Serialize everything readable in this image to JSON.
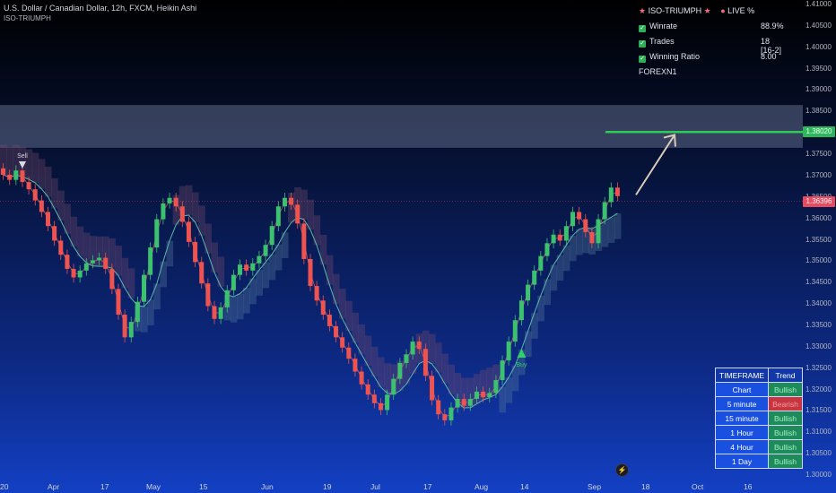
{
  "legend": {
    "title": "U.S. Dollar / Canadian Dollar, 12h, FXCM, Heikin Ashi",
    "indicator": "ISO-TRIUMPH"
  },
  "stats_panel": {
    "header_name": "ISO-TRIUMPH",
    "header_live": "LIVE %",
    "rows": [
      {
        "label": "Winrate",
        "value": "88.9%"
      },
      {
        "label": "Trades",
        "value": "18 [16-2]"
      },
      {
        "label": "Winning Ratio",
        "value": "8.00"
      }
    ],
    "footer": "FOREXN1"
  },
  "timeframe_table": {
    "headers": [
      "TIMEFRAME",
      "Trend"
    ],
    "rows": [
      {
        "timeframe": "Chart",
        "trend": "Bullish"
      },
      {
        "timeframe": "5 minute",
        "trend": "Bearish"
      },
      {
        "timeframe": "15 minute",
        "trend": "Bullish"
      },
      {
        "timeframe": "1 Hour",
        "trend": "Bullish"
      },
      {
        "timeframe": "4 Hour",
        "trend": "Bullish"
      },
      {
        "timeframe": "1 Day",
        "trend": "Bullish"
      }
    ]
  },
  "colors": {
    "bull": "#26a69a",
    "bull_candle": "#3cc26f",
    "bear": "#ef5350",
    "target_line": "#2ecc57",
    "price_label": "#e84a5f",
    "target_label": "#2bb85a"
  },
  "chart_data": {
    "type": "candlestick",
    "symbol": "USDCAD",
    "timeframe": "12h",
    "x_labels": [
      "20",
      "Apr",
      "17",
      "May",
      "15",
      "Jun",
      "19",
      "Jul",
      "17",
      "Aug",
      "14",
      "Sep",
      "18",
      "Oct",
      "16"
    ],
    "ylim": [
      1.3,
      1.41
    ],
    "y_ticks": [
      "1.41000",
      "1.40500",
      "1.40000",
      "1.39500",
      "1.39000",
      "1.38500",
      "1.38000",
      "1.37500",
      "1.37000",
      "1.36500",
      "1.36000",
      "1.35500",
      "1.35000",
      "1.34500",
      "1.34000",
      "1.33500",
      "1.33000",
      "1.32500",
      "1.32000",
      "1.31500",
      "1.31000",
      "1.30500",
      "1.30000"
    ],
    "close_series": [
      1.3702,
      1.369,
      1.3712,
      1.3685,
      1.3668,
      1.3642,
      1.3615,
      1.3582,
      1.3548,
      1.3515,
      1.3482,
      1.3462,
      1.3478,
      1.3495,
      1.3502,
      1.3508,
      1.3482,
      1.3435,
      1.3375,
      1.3322,
      1.3358,
      1.3405,
      1.3468,
      1.3532,
      1.3598,
      1.3635,
      1.3648,
      1.3628,
      1.3592,
      1.3545,
      1.3498,
      1.3448,
      1.3395,
      1.3365,
      1.3392,
      1.3432,
      1.3468,
      1.3492,
      1.3478,
      1.3495,
      1.3512,
      1.3538,
      1.3582,
      1.3628,
      1.3648,
      1.3632,
      1.3588,
      1.3505,
      1.3442,
      1.3408,
      1.3375,
      1.3348,
      1.3322,
      1.3298,
      1.3272,
      1.3242,
      1.3212,
      1.3188,
      1.3168,
      1.3152,
      1.3188,
      1.3225,
      1.3262,
      1.3282,
      1.3312,
      1.3295,
      1.3232,
      1.3175,
      1.3142,
      1.3128,
      1.3158,
      1.3178,
      1.3162,
      1.3178,
      1.3195,
      1.3182,
      1.3192,
      1.3222,
      1.3268,
      1.3312,
      1.3362,
      1.3408,
      1.3445,
      1.3478,
      1.3512,
      1.3542,
      1.3562,
      1.3548,
      1.3582,
      1.3615,
      1.3598,
      1.3568,
      1.3542,
      1.3598,
      1.3638,
      1.3672,
      1.3652
    ],
    "range_band": {
      "upper": 1.3865,
      "lower": 1.3765
    },
    "target_level": 1.3802,
    "current_price": 1.36396,
    "price_label": "1.36396",
    "target_label": "1.38020",
    "signals": [
      {
        "label": "Sell",
        "index": 3,
        "price": 1.3725,
        "type": "sell"
      },
      {
        "label": "Buy",
        "index": 81,
        "price": 1.3285,
        "type": "buy"
      }
    ]
  }
}
